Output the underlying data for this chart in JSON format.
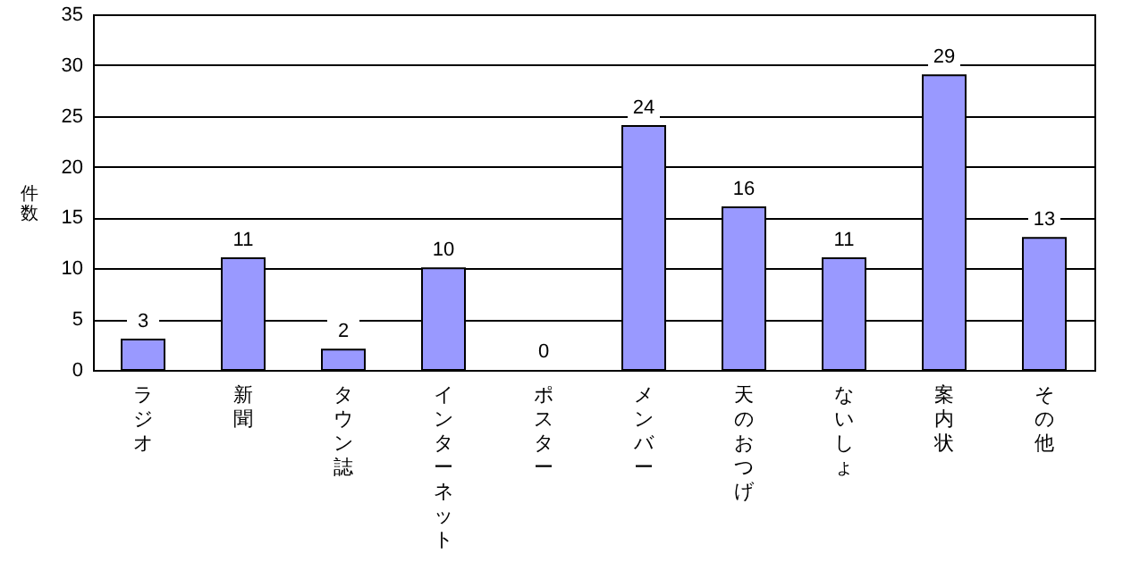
{
  "chart_data": {
    "type": "bar",
    "ylabel": "件数",
    "categories": [
      "ラジオ",
      "新聞",
      "タウン誌",
      "インターネット",
      "ポスター",
      "メンバー",
      "天のおつげ",
      "ないしょ",
      "案内状",
      "その他"
    ],
    "values": [
      3,
      11,
      2,
      10,
      0,
      24,
      16,
      11,
      29,
      13
    ],
    "color": "#9999ff",
    "ylim": [
      0,
      35
    ],
    "yticks": [
      0,
      5,
      10,
      15,
      20,
      25,
      30,
      35
    ],
    "grid": "y",
    "data_labels": true
  }
}
